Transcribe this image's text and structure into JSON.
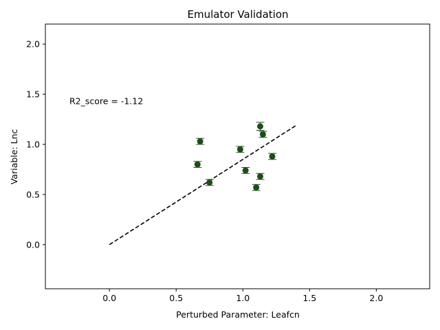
{
  "chart_data": {
    "type": "scatter",
    "title": "Emulator Validation",
    "xlabel": "Perturbed Parameter: Leafcn",
    "ylabel": "Variable: Lnc",
    "xlim": [
      -0.48,
      2.4
    ],
    "ylim": [
      -0.44,
      2.2
    ],
    "xticks": [
      0.0,
      0.5,
      1.0,
      1.5,
      2.0
    ],
    "xtick_labels": [
      "0.0",
      "0.5",
      "1.0",
      "1.5",
      "2.0"
    ],
    "yticks": [
      0.0,
      0.5,
      1.0,
      1.5,
      2.0
    ],
    "ytick_labels": [
      "0.0",
      "0.5",
      "1.0",
      "1.5",
      "2.0"
    ],
    "grid": false,
    "annotation": {
      "text": "R2_score = -1.12",
      "x": -0.3,
      "y": 1.4
    },
    "reference_line": {
      "style": "dashed",
      "color": "#000000",
      "x": [
        0.0,
        1.4
      ],
      "y": [
        0.0,
        1.19
      ]
    },
    "marker_color": "#1f4d1a",
    "errorbar_color": "#1f4d1a",
    "points": [
      {
        "x": 0.68,
        "y": 1.03,
        "err": 0.03
      },
      {
        "x": 0.66,
        "y": 0.8,
        "err": 0.03
      },
      {
        "x": 0.75,
        "y": 0.62,
        "err": 0.03
      },
      {
        "x": 0.98,
        "y": 0.95,
        "err": 0.03
      },
      {
        "x": 1.02,
        "y": 0.74,
        "err": 0.03
      },
      {
        "x": 1.1,
        "y": 0.57,
        "err": 0.03
      },
      {
        "x": 1.13,
        "y": 0.68,
        "err": 0.03
      },
      {
        "x": 1.13,
        "y": 1.18,
        "err": 0.04
      },
      {
        "x": 1.15,
        "y": 1.1,
        "err": 0.03
      },
      {
        "x": 1.22,
        "y": 0.88,
        "err": 0.03
      }
    ]
  }
}
